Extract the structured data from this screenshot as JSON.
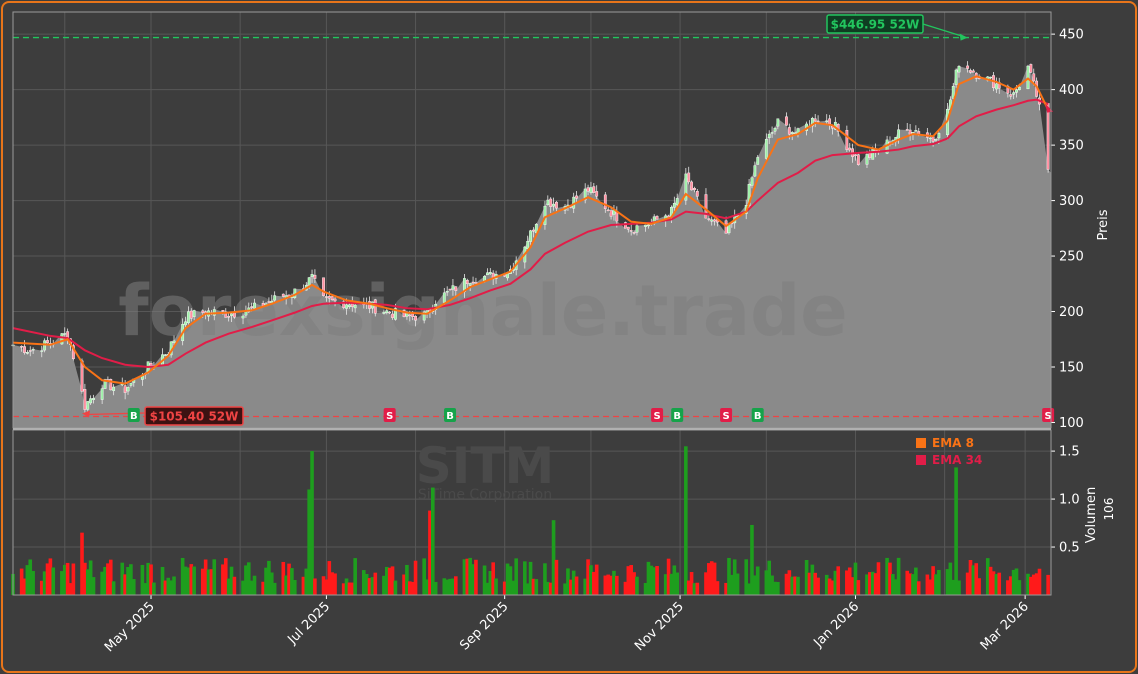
{
  "watermark": "forexsignale.trade",
  "chart_data": [
    {
      "type": "candlestick",
      "ylabel": "Preis",
      "ylim": [
        95,
        470
      ],
      "yticks": [
        100,
        150,
        200,
        250,
        300,
        350,
        400,
        450
      ],
      "xlim": [
        "2025-03-14",
        "2026-03-10"
      ],
      "grid": true,
      "high_52w": {
        "value": 446.95,
        "label": "$446.95 52W",
        "date": "2026-02-09",
        "color": "#22c55e"
      },
      "low_52w": {
        "value": 105.4,
        "label": "$105.40 52W",
        "date": "2025-04-07",
        "color": "#ef4444"
      },
      "last_price": 325,
      "series": [
        {
          "name": "EMA 8",
          "color": "#f97316"
        },
        {
          "name": "EMA 34",
          "color": "#e11d48"
        }
      ],
      "price_path": [
        [
          "2025-03-14",
          170
        ],
        [
          "2025-03-20",
          165
        ],
        [
          "2025-03-27",
          172
        ],
        [
          "2025-04-02",
          180
        ],
        [
          "2025-04-04",
          160
        ],
        [
          "2025-04-08",
          115
        ],
        [
          "2025-04-14",
          135
        ],
        [
          "2025-04-22",
          130
        ],
        [
          "2025-04-30",
          150
        ],
        [
          "2025-05-07",
          165
        ],
        [
          "2025-05-13",
          195
        ],
        [
          "2025-05-20",
          200
        ],
        [
          "2025-05-28",
          198
        ],
        [
          "2025-06-05",
          202
        ],
        [
          "2025-06-12",
          210
        ],
        [
          "2025-06-20",
          218
        ],
        [
          "2025-06-26",
          230
        ],
        [
          "2025-06-30",
          210
        ],
        [
          "2025-07-08",
          208
        ],
        [
          "2025-07-16",
          205
        ],
        [
          "2025-07-22",
          200
        ],
        [
          "2025-07-29",
          195
        ],
        [
          "2025-08-05",
          197
        ],
        [
          "2025-08-08",
          210
        ],
        [
          "2025-08-13",
          218
        ],
        [
          "2025-08-20",
          230
        ],
        [
          "2025-08-27",
          232
        ],
        [
          "2025-09-03",
          238
        ],
        [
          "2025-09-10",
          270
        ],
        [
          "2025-09-15",
          300
        ],
        [
          "2025-09-22",
          295
        ],
        [
          "2025-09-30",
          310
        ],
        [
          "2025-10-08",
          290
        ],
        [
          "2025-10-15",
          275
        ],
        [
          "2025-10-22",
          280
        ],
        [
          "2025-10-29",
          290
        ],
        [
          "2025-11-03",
          320
        ],
        [
          "2025-11-10",
          285
        ],
        [
          "2025-11-17",
          270
        ],
        [
          "2025-11-24",
          300
        ],
        [
          "2025-11-28",
          340
        ],
        [
          "2025-12-05",
          370
        ],
        [
          "2025-12-12",
          360
        ],
        [
          "2025-12-18",
          375
        ],
        [
          "2025-12-24",
          370
        ],
        [
          "2026-01-02",
          335
        ],
        [
          "2026-01-09",
          345
        ],
        [
          "2026-01-16",
          360
        ],
        [
          "2026-01-21",
          365
        ],
        [
          "2026-01-28",
          355
        ],
        [
          "2026-02-02",
          380
        ],
        [
          "2026-02-06",
          425
        ],
        [
          "2026-02-12",
          415
        ],
        [
          "2026-02-19",
          405
        ],
        [
          "2026-02-25",
          395
        ],
        [
          "2026-03-02",
          420
        ],
        [
          "2026-03-05",
          395
        ],
        [
          "2026-03-07",
          370
        ],
        [
          "2026-03-09",
          325
        ]
      ],
      "ema8_path": [
        [
          "2025-03-14",
          172
        ],
        [
          "2025-03-27",
          170
        ],
        [
          "2025-04-02",
          175
        ],
        [
          "2025-04-08",
          150
        ],
        [
          "2025-04-14",
          138
        ],
        [
          "2025-04-22",
          135
        ],
        [
          "2025-04-30",
          145
        ],
        [
          "2025-05-07",
          160
        ],
        [
          "2025-05-13",
          185
        ],
        [
          "2025-05-20",
          198
        ],
        [
          "2025-05-28",
          199
        ],
        [
          "2025-06-05",
          201
        ],
        [
          "2025-06-12",
          207
        ],
        [
          "2025-06-20",
          215
        ],
        [
          "2025-06-26",
          224
        ],
        [
          "2025-06-30",
          218
        ],
        [
          "2025-07-08",
          210
        ],
        [
          "2025-07-16",
          207
        ],
        [
          "2025-07-22",
          203
        ],
        [
          "2025-07-29",
          199
        ],
        [
          "2025-08-05",
          198
        ],
        [
          "2025-08-13",
          210
        ],
        [
          "2025-08-20",
          222
        ],
        [
          "2025-08-27",
          229
        ],
        [
          "2025-09-03",
          236
        ],
        [
          "2025-09-10",
          258
        ],
        [
          "2025-09-15",
          285
        ],
        [
          "2025-09-22",
          293
        ],
        [
          "2025-09-30",
          303
        ],
        [
          "2025-10-08",
          294
        ],
        [
          "2025-10-15",
          281
        ],
        [
          "2025-10-22",
          279
        ],
        [
          "2025-10-29",
          285
        ],
        [
          "2025-11-03",
          306
        ],
        [
          "2025-11-10",
          292
        ],
        [
          "2025-11-17",
          277
        ],
        [
          "2025-11-24",
          290
        ],
        [
          "2025-11-28",
          320
        ],
        [
          "2025-12-05",
          355
        ],
        [
          "2025-12-12",
          360
        ],
        [
          "2025-12-18",
          370
        ],
        [
          "2025-12-24",
          368
        ],
        [
          "2026-01-02",
          350
        ],
        [
          "2026-01-09",
          346
        ],
        [
          "2026-01-16",
          355
        ],
        [
          "2026-01-21",
          360
        ],
        [
          "2026-01-28",
          358
        ],
        [
          "2026-02-02",
          372
        ],
        [
          "2026-02-06",
          405
        ],
        [
          "2026-02-12",
          412
        ],
        [
          "2026-02-19",
          407
        ],
        [
          "2026-02-25",
          400
        ],
        [
          "2026-03-02",
          410
        ],
        [
          "2026-03-05",
          403
        ],
        [
          "2026-03-09",
          382
        ]
      ],
      "ema34_path": [
        [
          "2025-03-14",
          185
        ],
        [
          "2025-03-27",
          178
        ],
        [
          "2025-04-02",
          176
        ],
        [
          "2025-04-08",
          165
        ],
        [
          "2025-04-14",
          158
        ],
        [
          "2025-04-22",
          152
        ],
        [
          "2025-04-30",
          150
        ],
        [
          "2025-05-07",
          152
        ],
        [
          "2025-05-13",
          162
        ],
        [
          "2025-05-20",
          172
        ],
        [
          "2025-05-28",
          180
        ],
        [
          "2025-06-05",
          186
        ],
        [
          "2025-06-12",
          192
        ],
        [
          "2025-06-20",
          199
        ],
        [
          "2025-06-26",
          205
        ],
        [
          "2025-06-30",
          207
        ],
        [
          "2025-07-08",
          208
        ],
        [
          "2025-07-16",
          207
        ],
        [
          "2025-07-22",
          206
        ],
        [
          "2025-07-29",
          203
        ],
        [
          "2025-08-05",
          202
        ],
        [
          "2025-08-13",
          206
        ],
        [
          "2025-08-20",
          212
        ],
        [
          "2025-08-27",
          219
        ],
        [
          "2025-09-03",
          225
        ],
        [
          "2025-09-10",
          238
        ],
        [
          "2025-09-15",
          252
        ],
        [
          "2025-09-22",
          262
        ],
        [
          "2025-09-30",
          272
        ],
        [
          "2025-10-08",
          278
        ],
        [
          "2025-10-15",
          279
        ],
        [
          "2025-10-22",
          280
        ],
        [
          "2025-10-29",
          283
        ],
        [
          "2025-11-03",
          290
        ],
        [
          "2025-11-10",
          288
        ],
        [
          "2025-11-17",
          284
        ],
        [
          "2025-11-24",
          290
        ],
        [
          "2025-11-28",
          300
        ],
        [
          "2025-12-05",
          316
        ],
        [
          "2025-12-12",
          325
        ],
        [
          "2025-12-18",
          336
        ],
        [
          "2025-12-24",
          341
        ],
        [
          "2026-01-02",
          343
        ],
        [
          "2026-01-09",
          344
        ],
        [
          "2026-01-16",
          346
        ],
        [
          "2026-01-21",
          349
        ],
        [
          "2026-01-28",
          351
        ],
        [
          "2026-02-02",
          356
        ],
        [
          "2026-02-06",
          367
        ],
        [
          "2026-02-12",
          376
        ],
        [
          "2026-02-19",
          382
        ],
        [
          "2026-02-25",
          386
        ],
        [
          "2026-03-02",
          390
        ],
        [
          "2026-03-05",
          391
        ],
        [
          "2026-03-09",
          387
        ]
      ],
      "signals": [
        {
          "label": "B",
          "date": "2025-04-25",
          "color": "#16a34a"
        },
        {
          "label": "S",
          "date": "2025-07-23",
          "color": "#e11d48"
        },
        {
          "label": "B",
          "date": "2025-08-13",
          "color": "#16a34a"
        },
        {
          "label": "S",
          "date": "2025-10-24",
          "color": "#e11d48"
        },
        {
          "label": "B",
          "date": "2025-10-31",
          "color": "#16a34a"
        },
        {
          "label": "S",
          "date": "2025-11-17",
          "color": "#e11d48"
        },
        {
          "label": "B",
          "date": "2025-11-28",
          "color": "#16a34a"
        },
        {
          "label": "S",
          "date": "2026-03-09",
          "color": "#e11d48"
        }
      ]
    },
    {
      "type": "bar",
      "ylabel": "Volumen",
      "yunit": "10^6",
      "ylim": [
        0,
        1.72
      ],
      "yticks": [
        0.5,
        1.0,
        1.5
      ],
      "yticklabels": [
        "0.5",
        "1.0",
        "1.5"
      ],
      "xticks": [
        {
          "date": "2025-05-01",
          "label": "May 2025"
        },
        {
          "date": "2025-07-01",
          "label": "Jul 2025"
        },
        {
          "date": "2025-09-01",
          "label": "Sep 2025"
        },
        {
          "date": "2025-11-01",
          "label": "Nov 2025"
        },
        {
          "date": "2026-01-01",
          "label": "Jan 2026"
        },
        {
          "date": "2026-03-01",
          "label": "Mar 2026"
        }
      ],
      "watermark": {
        "symbol": "SITM",
        "name": "SiTime Corporation"
      },
      "spikes": [
        {
          "date": "2025-06-26",
          "value": 1.5
        },
        {
          "date": "2025-06-25",
          "value": 1.1
        },
        {
          "date": "2025-08-07",
          "value": 1.12
        },
        {
          "date": "2025-08-06",
          "value": 0.88
        },
        {
          "date": "2025-11-03",
          "value": 1.55
        },
        {
          "date": "2026-02-05",
          "value": 1.33
        },
        {
          "date": "2025-04-07",
          "value": 0.65
        },
        {
          "date": "2025-09-18",
          "value": 0.78
        },
        {
          "date": "2025-11-26",
          "value": 0.73
        }
      ],
      "base_volume": 0.3
    }
  ]
}
